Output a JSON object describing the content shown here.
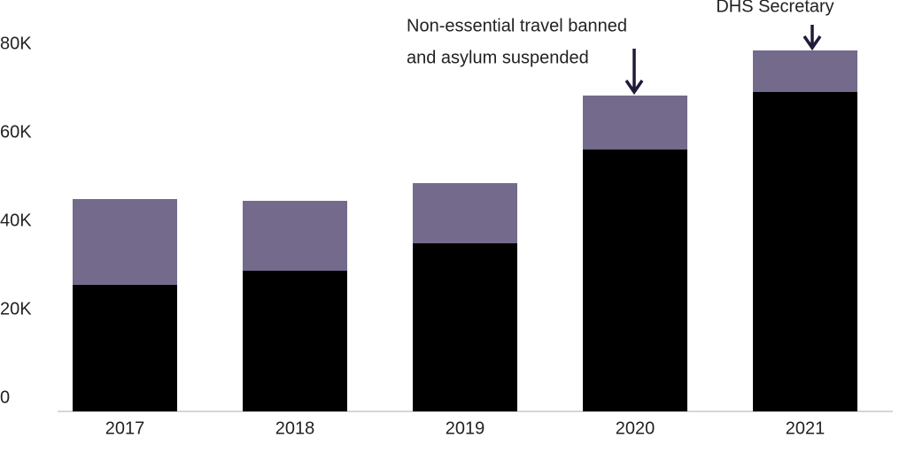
{
  "chart_data": {
    "type": "stacked_bar",
    "categories": [
      "2017",
      "2018",
      "2019",
      "2020",
      "2021"
    ],
    "series": [
      {
        "color": "#000000",
        "values": [
          28600,
          31800,
          38000,
          59200,
          72200
        ]
      },
      {
        "color": "#736a8c",
        "values": [
          19400,
          15800,
          13600,
          12200,
          9400
        ]
      }
    ],
    "ylim": [
      0,
      93000
    ],
    "yticks": [
      0,
      {
        "value": 20000,
        "label": "20K"
      },
      {
        "value": 40000,
        "label": "40K"
      },
      {
        "value": 60000,
        "label": "60K"
      },
      {
        "value": 80000,
        "label": "80K"
      }
    ],
    "grid": false,
    "annotations": [
      {
        "text": [
          "Non-essential travel banned",
          "and asylum suspended"
        ]
      },
      {
        "text": [
          "DHS Secretary"
        ]
      }
    ]
  }
}
